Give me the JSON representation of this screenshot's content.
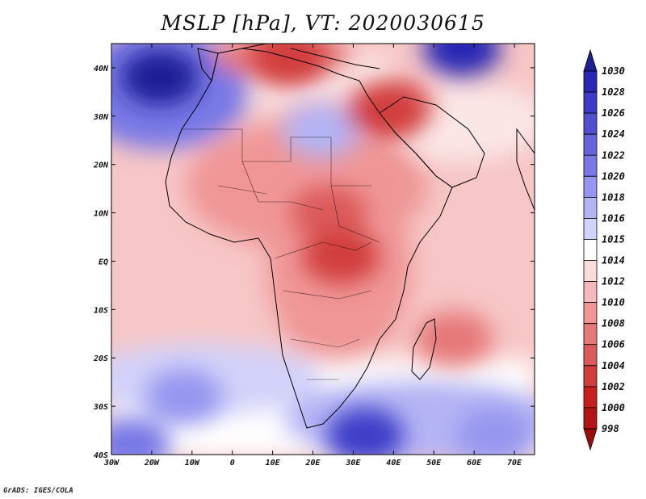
{
  "title": "MSLP [hPa], VT: 2020030615",
  "credit": "GrADS: IGES/COLA",
  "map": {
    "lon_range": [
      -30,
      75
    ],
    "lat_range": [
      -40,
      45
    ],
    "lat_labels": [
      {
        "value": 40,
        "text": "40N"
      },
      {
        "value": 30,
        "text": "30N"
      },
      {
        "value": 20,
        "text": "20N"
      },
      {
        "value": 10,
        "text": "10N"
      },
      {
        "value": 0,
        "text": "EQ"
      },
      {
        "value": -10,
        "text": "10S"
      },
      {
        "value": -20,
        "text": "20S"
      },
      {
        "value": -30,
        "text": "30S"
      },
      {
        "value": -40,
        "text": "40S"
      }
    ],
    "lon_labels": [
      {
        "value": -30,
        "text": "30W"
      },
      {
        "value": -20,
        "text": "20W"
      },
      {
        "value": -10,
        "text": "10W"
      },
      {
        "value": 0,
        "text": "0"
      },
      {
        "value": 10,
        "text": "10E"
      },
      {
        "value": 20,
        "text": "20E"
      },
      {
        "value": 30,
        "text": "30E"
      },
      {
        "value": 40,
        "text": "40E"
      },
      {
        "value": 50,
        "text": "50E"
      },
      {
        "value": 60,
        "text": "60E"
      },
      {
        "value": 70,
        "text": "70E"
      }
    ]
  },
  "colorbar": {
    "levels": [
      "1030",
      "1028",
      "1026",
      "1024",
      "1022",
      "1020",
      "1018",
      "1016",
      "1015",
      "1014",
      "1012",
      "1010",
      "1008",
      "1006",
      "1004",
      "1002",
      "1000",
      "998"
    ],
    "colors": [
      "#1e1e96",
      "#2828b4",
      "#3c3cc8",
      "#5050d2",
      "#6464dc",
      "#7878e6",
      "#9696f0",
      "#b4b4f5",
      "#d2d2fa",
      "#ffffff",
      "#fadcdc",
      "#f5b9b9",
      "#f09696",
      "#e67878",
      "#dc5a5a",
      "#d23c3c",
      "#c81e1e",
      "#b41414",
      "#a00a0a"
    ]
  },
  "field": {
    "type": "mean sea level pressure",
    "units": "hPa",
    "pressure_systems": [
      {
        "lon": -18,
        "lat": 38,
        "value": 1030
      },
      {
        "lon": 57,
        "lat": 44,
        "value": 1028
      },
      {
        "lon": 22,
        "lat": 27,
        "value": 1016
      },
      {
        "lon": -12,
        "lat": -28,
        "value": 1018
      },
      {
        "lon": 33,
        "lat": -36,
        "value": 1026
      },
      {
        "lon": -25,
        "lat": -38,
        "value": 1020
      },
      {
        "lon": 65,
        "lat": -36,
        "value": 1018
      },
      {
        "lon": 24,
        "lat": 10,
        "value": 1004
      },
      {
        "lon": 27,
        "lat": 1,
        "value": 1003
      },
      {
        "lon": 38,
        "lat": 31,
        "value": 1003
      },
      {
        "lon": 14,
        "lat": 42,
        "value": 1003
      },
      {
        "lon": 55,
        "lat": -16,
        "value": 1007
      }
    ]
  }
}
